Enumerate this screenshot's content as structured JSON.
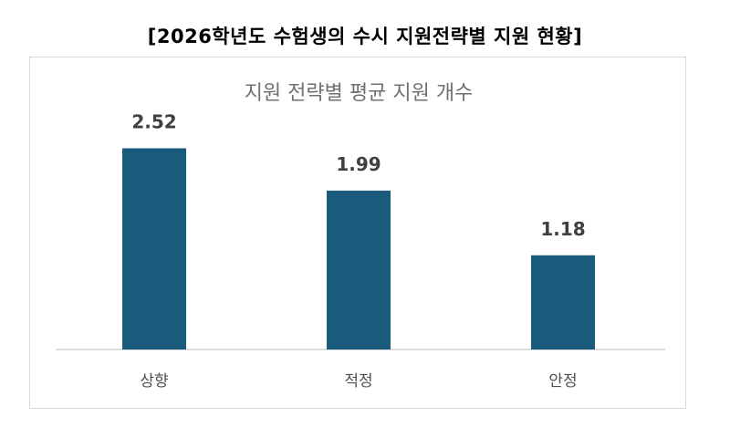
{
  "page": {
    "title": "[2026학년도 수험생의 수시 지원전략별 지원 현황]"
  },
  "chart_data": {
    "type": "bar",
    "title": "지원 전략별 평균 지원 개수",
    "categories": [
      "상향",
      "적정",
      "안정"
    ],
    "values": [
      2.52,
      1.99,
      1.18
    ],
    "data_labels": [
      "2.52",
      "1.99",
      "1.18"
    ],
    "ylim": [
      0,
      3.2
    ],
    "grid": false,
    "legend": "none",
    "bar_color": "#1a5a7c",
    "axis_color": "#d0d0d0",
    "title_color": "#707070",
    "label_color": "#404040",
    "tick_color": "#505050"
  }
}
